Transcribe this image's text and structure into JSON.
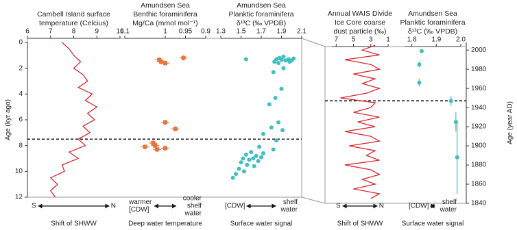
{
  "chart_data": [
    {
      "type": "line",
      "title": [
        "Cambell Island surface",
        "temperature (Celcius)"
      ],
      "xlim": [
        6,
        10
      ],
      "xticks": [
        6,
        7,
        8,
        9,
        10
      ],
      "ylabel": "Age (kyr ago)",
      "y_axis_side": "left",
      "ylim": [
        0,
        12
      ],
      "yticks": [
        0,
        2,
        4,
        6,
        8,
        10,
        12
      ],
      "reference_age": 7.5,
      "color": "#d7282f",
      "age": [
        0,
        0.5,
        1,
        1.5,
        2,
        2.5,
        3,
        3.5,
        4,
        4.5,
        5,
        5.5,
        6,
        6.5,
        7,
        7.5,
        8,
        8.5,
        9,
        9.5,
        10,
        10.5,
        11,
        11.5,
        12
      ],
      "values": [
        7.5,
        7.8,
        8.0,
        8.3,
        8.0,
        8.4,
        8.6,
        8.2,
        8.8,
        8.5,
        9.0,
        8.6,
        8.9,
        8.4,
        8.7,
        8.2,
        8.5,
        7.8,
        8.2,
        7.5,
        7.6,
        7.0,
        7.3,
        7.0,
        7.2
      ],
      "bottom": {
        "left": [
          "S"
        ],
        "right": [
          "N"
        ],
        "caption": "Shift of SHWW"
      }
    },
    {
      "type": "scatter",
      "title": [
        "Amundsen Sea",
        "Benthic foraminifera",
        "Mg/Ca (mmol mol⁻¹)"
      ],
      "xlim": [
        1.1,
        0.9
      ],
      "xticks": [
        1.1,
        1,
        0.95,
        0.9
      ],
      "ylim": [
        0,
        12
      ],
      "color": "#e8743b",
      "marker": "square",
      "age": [
        1.2,
        1.35,
        1.5,
        1.6,
        6.2,
        6.7,
        7.8,
        8.0,
        8.1,
        8.2,
        8.3
      ],
      "values": [
        0.955,
        1.015,
        1.01,
        1.0,
        1.0,
        0.975,
        1.03,
        1.025,
        1.05,
        1.0,
        1.02
      ],
      "errors": [
        0.01,
        0.01,
        0.01,
        0.01,
        0.01,
        0.01,
        0.01,
        0.01,
        0.01,
        0.01,
        0.01
      ],
      "age_errors": [
        0.2,
        0.2,
        0.2,
        0.2,
        0.2,
        0.2,
        0.2,
        0.2,
        0.2,
        0.2,
        0.2
      ],
      "bottom": {
        "left": [
          "warmer",
          "[CDW]"
        ],
        "right": [
          "cooler",
          "shelf",
          "water"
        ],
        "caption": "Deep water temperature"
      }
    },
    {
      "type": "scatter",
      "title": [
        "Amundsen Sea",
        "Planktic foraminifera",
        "δ¹³C (‰ VPDB)"
      ],
      "xlim": [
        1.3,
        2.1
      ],
      "xticks": [
        1.3,
        1.5,
        1.7,
        1.9,
        2.1
      ],
      "ylim": [
        0,
        12
      ],
      "color": "#3fbfbf",
      "marker": "circle",
      "age": [
        1.1,
        1.2,
        1.25,
        1.3,
        1.3,
        1.35,
        1.4,
        1.4,
        1.5,
        1.5,
        1.6,
        1.3,
        2.3,
        3.6,
        4.8,
        6.2,
        6.6,
        6.8,
        7.1,
        7.6,
        8.1,
        8.3,
        8.5,
        8.6,
        8.7,
        8.8,
        8.9,
        9.0,
        9.0,
        9.1,
        9.2,
        9.3,
        9.5,
        9.6,
        9.8,
        10.0,
        10.2,
        10.5,
        2.0,
        4.3
      ],
      "values": [
        1.92,
        1.88,
        2.02,
        1.97,
        1.85,
        1.9,
        2.0,
        1.94,
        1.83,
        1.98,
        1.87,
        1.55,
        1.82,
        1.9,
        1.78,
        1.87,
        1.8,
        1.91,
        1.72,
        1.85,
        1.68,
        1.82,
        1.6,
        1.72,
        1.55,
        1.65,
        1.7,
        1.52,
        1.62,
        1.58,
        1.67,
        1.5,
        1.56,
        1.63,
        1.48,
        1.53,
        1.45,
        1.42,
        1.92,
        1.84
      ],
      "bottom": {
        "left": [
          "[CDW]"
        ],
        "right": [
          "shelf",
          "water"
        ],
        "caption": "Surface water signal"
      }
    },
    {
      "type": "line",
      "title": [
        "Annual WAIS Divide",
        "Ice Core coarse",
        "dust particle (‰)"
      ],
      "xlim": [
        7.5,
        1
      ],
      "xticks": [
        7,
        5,
        3,
        1
      ],
      "ylim": [
        2008,
        1840
      ],
      "reference_year": 1947,
      "color": "#d7282f",
      "age": [
        2005,
        2000,
        1995,
        1990,
        1985,
        1980,
        1975,
        1970,
        1965,
        1960,
        1955,
        1950,
        1945,
        1940,
        1935,
        1930,
        1925,
        1920,
        1915,
        1910,
        1905,
        1900,
        1895,
        1890,
        1885,
        1880,
        1875,
        1870,
        1865,
        1860,
        1855,
        1850,
        1845
      ],
      "values": [
        2.5,
        4,
        2,
        6,
        3,
        2,
        5,
        2.5,
        4,
        2,
        3.5,
        6.5,
        2.5,
        3,
        5,
        2,
        4.5,
        2.5,
        6,
        3,
        2,
        5.5,
        2.5,
        3.5,
        2,
        6,
        3,
        2,
        4,
        2.5,
        5,
        2,
        3
      ],
      "bottom": {
        "left": [
          "S"
        ],
        "right": [
          "N"
        ],
        "caption": "Shift of SHWW"
      }
    },
    {
      "type": "scatter",
      "title": [
        "Amundsen Sea",
        "Planktic foraminifera",
        "δ¹³C (‰ VPDB)"
      ],
      "xlim": [
        1.77,
        2.0
      ],
      "xticks": [
        1.8,
        1.9,
        {
          "value": 2,
          "label": "2.0"
        }
      ],
      "ylabel": "Age (year AD)",
      "y_axis_side": "right",
      "ylim": [
        2008,
        1840
      ],
      "yticks": [
        1840,
        1860,
        1880,
        1900,
        1920,
        1940,
        1960,
        1980,
        2000
      ],
      "color": "#3fbfbf",
      "marker": "circle",
      "age": [
        1999,
        1985,
        1966,
        1947,
        1925,
        1888
      ],
      "values": [
        1.84,
        1.83,
        1.83,
        1.96,
        1.98,
        1.985
      ],
      "age_errors": [
        2,
        3,
        4,
        5,
        10,
        38
      ],
      "bottom": {
        "left": [
          "[CDW]"
        ],
        "right": [
          "shelf",
          "water"
        ],
        "caption": "Surface water signal"
      }
    }
  ]
}
